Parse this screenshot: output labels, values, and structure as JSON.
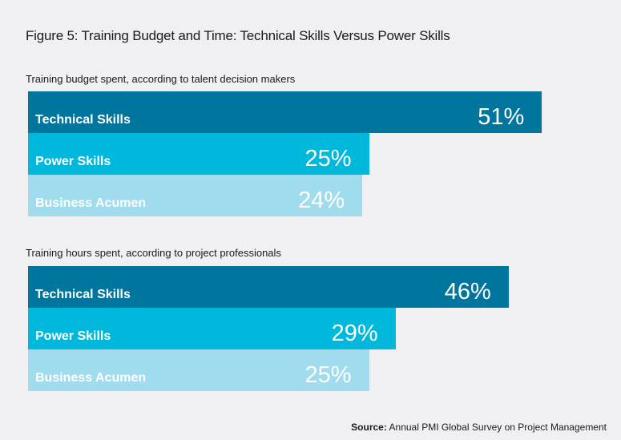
{
  "chart_data": {
    "type": "bar",
    "orientation": "horizontal",
    "title": "Figure 5: Training Budget and Time: Technical Skills Versus Power Skills",
    "categories": [
      "Technical Skills",
      "Power Skills",
      "Business Acumen"
    ],
    "colors": [
      "#00759e",
      "#00b8dc",
      "#a0dced"
    ],
    "groups": [
      {
        "subtitle": "Training budget spent, according to talent decision makers",
        "values": [
          51,
          25,
          24
        ],
        "labels": [
          "51%",
          "25%",
          "24%"
        ]
      },
      {
        "subtitle": "Training hours spent, according to project professionals",
        "values": [
          46,
          29,
          25
        ],
        "labels": [
          "46%",
          "29%",
          "25%"
        ]
      }
    ],
    "unit": "%"
  },
  "source": {
    "label": "Source:",
    "text": "Annual PMI Global Survey on Project Management"
  }
}
